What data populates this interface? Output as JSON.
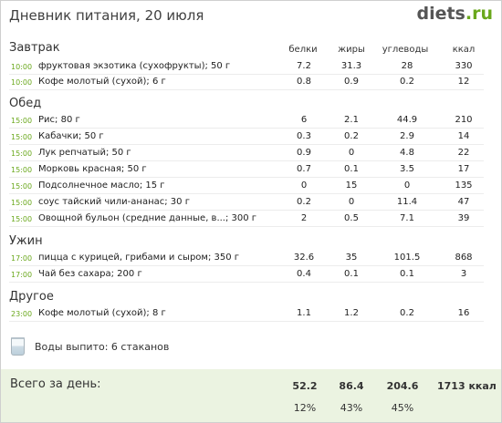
{
  "header": {
    "title": "Дневник питания, 20 июля",
    "logo_main": "diets",
    "logo_tld": ".ru"
  },
  "columns": {
    "protein": "белки",
    "fat": "жиры",
    "carbs": "углеводы",
    "kcal": "ккал"
  },
  "meals": [
    {
      "title": "Завтрак",
      "items": [
        {
          "time": "10:00",
          "name": "фруктовая экзотика (сухофрукты); 50 г",
          "protein": "7.2",
          "fat": "31.3",
          "carbs": "28",
          "kcal": "330"
        },
        {
          "time": "10:00",
          "name": "Кофе молотый (сухой); 6 г",
          "protein": "0.8",
          "fat": "0.9",
          "carbs": "0.2",
          "kcal": "12"
        }
      ]
    },
    {
      "title": "Обед",
      "items": [
        {
          "time": "15:00",
          "name": "Рис; 80 г",
          "protein": "6",
          "fat": "2.1",
          "carbs": "44.9",
          "kcal": "210"
        },
        {
          "time": "15:00",
          "name": "Кабачки; 50 г",
          "protein": "0.3",
          "fat": "0.2",
          "carbs": "2.9",
          "kcal": "14"
        },
        {
          "time": "15:00",
          "name": "Лук репчатый; 50 г",
          "protein": "0.9",
          "fat": "0",
          "carbs": "4.8",
          "kcal": "22"
        },
        {
          "time": "15:00",
          "name": "Морковь красная; 50 г",
          "protein": "0.7",
          "fat": "0.1",
          "carbs": "3.5",
          "kcal": "17"
        },
        {
          "time": "15:00",
          "name": "Подсолнечное масло; 15 г",
          "protein": "0",
          "fat": "15",
          "carbs": "0",
          "kcal": "135"
        },
        {
          "time": "15:00",
          "name": "соус тайский чили-ананас; 30 г",
          "protein": "0.2",
          "fat": "0",
          "carbs": "11.4",
          "kcal": "47"
        },
        {
          "time": "15:00",
          "name": "Овощной бульон (средние данные, в...; 300 г",
          "protein": "2",
          "fat": "0.5",
          "carbs": "7.1",
          "kcal": "39"
        }
      ]
    },
    {
      "title": "Ужин",
      "items": [
        {
          "time": "17:00",
          "name": "пицца с курицей, грибами и сыром; 350 г",
          "protein": "32.6",
          "fat": "35",
          "carbs": "101.5",
          "kcal": "868"
        },
        {
          "time": "17:00",
          "name": "Чай без сахара; 200 г",
          "protein": "0.4",
          "fat": "0.1",
          "carbs": "0.1",
          "kcal": "3"
        }
      ]
    },
    {
      "title": "Другое",
      "items": [
        {
          "time": "23:00",
          "name": "Кофе молотый (сухой); 8 г",
          "protein": "1.1",
          "fat": "1.2",
          "carbs": "0.2",
          "kcal": "16"
        }
      ]
    }
  ],
  "water": {
    "icon": "glass-icon",
    "text": "Воды выпито: 6 стаканов"
  },
  "totals": {
    "label": "Всего за день:",
    "protein": "52.2",
    "fat": "86.4",
    "carbs": "204.6",
    "kcal": "1713 ккал",
    "protein_pct": "12%",
    "fat_pct": "43%",
    "carbs_pct": "45%"
  },
  "colors": {
    "accent_green": "#6aa81c",
    "totals_bg": "#ebf3e1"
  }
}
